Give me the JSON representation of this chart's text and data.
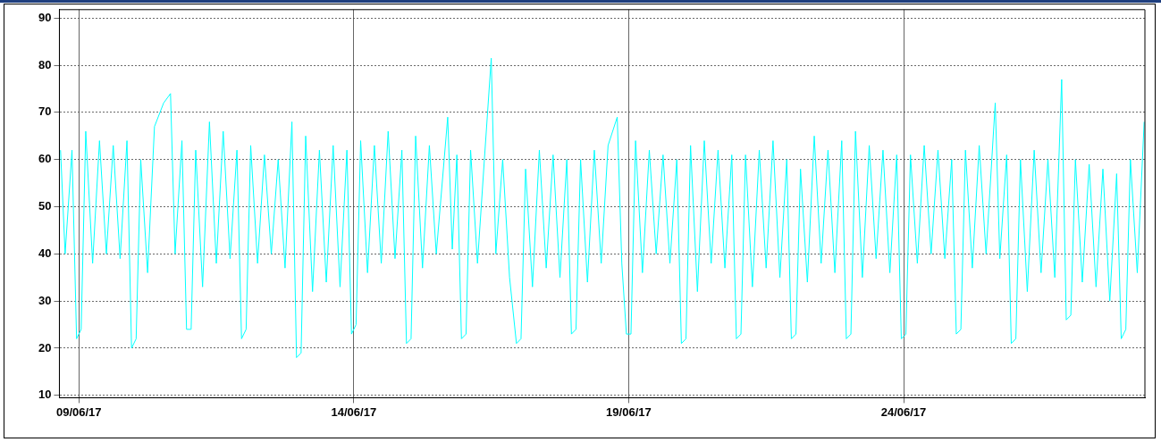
{
  "chart_data": {
    "type": "line",
    "xlim": [
      "--06-08T15:30",
      "--06-28T09:20"
    ],
    "ylim": [
      9.5,
      91.8
    ],
    "yticks": [
      10,
      20,
      30,
      40,
      50,
      60,
      70,
      80,
      90
    ],
    "xticks": [
      {
        "value": "--06-09",
        "label": "09/06/17"
      },
      {
        "value": "--06-14",
        "label": "14/06/17"
      },
      {
        "value": "--06-19",
        "label": "19/06/17"
      },
      {
        "value": "--06-24",
        "label": "24/06/17"
      }
    ],
    "grid": true,
    "legend": false,
    "marker": "none",
    "line_style": "solid",
    "series": [
      {
        "color": "#00ffff",
        "x": [
          "--06-08T16:00",
          "--06-08T18:00",
          "--06-08T21:00",
          "--06-08T23:00",
          "--06-09T01:00",
          "--06-09T03:00",
          "--06-09T06:00",
          "--06-09T09:00",
          "--06-09T12:00",
          "--06-09T15:00",
          "--06-09T18:00",
          "--06-09T21:00",
          "--06-09T23:00",
          "--06-10T01:00",
          "--06-10T03:00",
          "--06-10T06:00",
          "--06-10T09:00",
          "--06-10T13:00",
          "--06-10T16:00",
          "--06-10T18:00",
          "--06-10T21:00",
          "--06-10T23:00",
          "--06-11T01:00",
          "--06-11T03:00",
          "--06-11T06:00",
          "--06-11T09:00",
          "--06-11T12:00",
          "--06-11T15:00",
          "--06-11T18:00",
          "--06-11T21:00",
          "--06-11T23:00",
          "--06-12T01:00",
          "--06-12T03:00",
          "--06-12T06:00",
          "--06-12T09:00",
          "--06-12T12:00",
          "--06-12T15:00",
          "--06-12T18:00",
          "--06-12T21:00",
          "--06-12T23:00",
          "--06-13T01:00",
          "--06-13T03:00",
          "--06-13T06:00",
          "--06-13T09:00",
          "--06-13T12:00",
          "--06-13T15:00",
          "--06-13T18:00",
          "--06-13T21:00",
          "--06-13T23:00",
          "--06-14T01:00",
          "--06-14T03:00",
          "--06-14T06:00",
          "--06-14T09:00",
          "--06-14T12:00",
          "--06-14T15:00",
          "--06-14T18:00",
          "--06-14T21:00",
          "--06-14T23:00",
          "--06-15T01:00",
          "--06-15T03:00",
          "--06-15T06:00",
          "--06-15T09:00",
          "--06-15T12:00",
          "--06-15T17:00",
          "--06-15T19:00",
          "--06-15T21:00",
          "--06-15T23:00",
          "--06-16T01:00",
          "--06-16T03:00",
          "--06-16T06:00",
          "--06-16T09:00",
          "--06-16T12:00",
          "--06-16T14:00",
          "--06-16T17:00",
          "--06-16T20:00",
          "--06-16T23:00",
          "--06-17T01:00",
          "--06-17T03:00",
          "--06-17T06:00",
          "--06-17T09:00",
          "--06-17T12:00",
          "--06-17T15:00",
          "--06-17T18:00",
          "--06-17T21:00",
          "--06-17T23:00",
          "--06-18T01:00",
          "--06-18T03:00",
          "--06-18T06:00",
          "--06-18T09:00",
          "--06-18T12:00",
          "--06-18T15:00",
          "--06-18T19:00",
          "--06-18T21:00",
          "--06-18T23:00",
          "--06-19T01:00",
          "--06-19T03:00",
          "--06-19T06:00",
          "--06-19T09:00",
          "--06-19T12:00",
          "--06-19T15:00",
          "--06-19T18:00",
          "--06-19T21:00",
          "--06-19T23:00",
          "--06-20T01:00",
          "--06-20T03:00",
          "--06-20T06:00",
          "--06-20T09:00",
          "--06-20T12:00",
          "--06-20T15:00",
          "--06-20T18:00",
          "--06-20T21:00",
          "--06-20T23:00",
          "--06-21T01:00",
          "--06-21T03:00",
          "--06-21T06:00",
          "--06-21T09:00",
          "--06-21T12:00",
          "--06-21T15:00",
          "--06-21T18:00",
          "--06-21T21:00",
          "--06-21T23:00",
          "--06-22T01:00",
          "--06-22T03:00",
          "--06-22T06:00",
          "--06-22T09:00",
          "--06-22T12:00",
          "--06-22T15:00",
          "--06-22T18:00",
          "--06-22T21:00",
          "--06-22T23:00",
          "--06-23T01:00",
          "--06-23T03:00",
          "--06-23T06:00",
          "--06-23T09:00",
          "--06-23T12:00",
          "--06-23T15:00",
          "--06-23T18:00",
          "--06-23T21:00",
          "--06-23T23:00",
          "--06-24T01:00",
          "--06-24T03:00",
          "--06-24T06:00",
          "--06-24T09:00",
          "--06-24T12:00",
          "--06-24T15:00",
          "--06-24T18:00",
          "--06-24T21:00",
          "--06-24T23:00",
          "--06-25T01:00",
          "--06-25T03:00",
          "--06-25T06:00",
          "--06-25T09:00",
          "--06-25T12:00",
          "--06-25T16:00",
          "--06-25T18:00",
          "--06-25T21:00",
          "--06-25T23:00",
          "--06-26T01:00",
          "--06-26T03:00",
          "--06-26T06:00",
          "--06-26T09:00",
          "--06-26T12:00",
          "--06-26T15:00",
          "--06-26T18:00",
          "--06-26T21:00",
          "--06-26T23:00",
          "--06-27T01:00",
          "--06-27T03:00",
          "--06-27T06:00",
          "--06-27T09:00",
          "--06-27T12:00",
          "--06-27T15:00",
          "--06-27T18:00",
          "--06-27T21:00",
          "--06-27T23:00",
          "--06-28T01:00",
          "--06-28T03:00",
          "--06-28T06:00",
          "--06-28T09:00"
        ],
        "values": [
          62,
          40,
          62,
          22,
          24,
          66,
          38,
          64,
          40,
          63,
          39,
          64,
          20,
          22,
          60,
          36,
          67,
          72,
          74,
          40,
          64,
          24,
          24,
          62,
          33,
          68,
          38,
          66,
          39,
          62,
          22,
          24,
          63,
          38,
          61,
          40,
          60,
          37,
          68,
          18,
          19,
          65,
          32,
          62,
          34,
          63,
          33,
          62,
          23,
          25,
          64,
          36,
          63,
          38,
          66,
          39,
          62,
          21,
          22,
          65,
          37,
          63,
          40,
          69,
          41,
          61,
          22,
          23,
          62,
          38,
          60,
          81.5,
          40,
          60,
          35,
          21,
          22,
          58,
          33,
          62,
          37,
          61,
          35,
          60,
          23,
          24,
          60,
          34,
          62,
          38,
          63,
          69,
          38,
          23,
          23,
          64,
          36,
          62,
          40,
          61,
          38,
          60,
          21,
          22,
          63,
          32,
          64,
          38,
          62,
          37,
          61,
          22,
          23,
          61,
          33,
          62,
          37,
          64,
          35,
          60,
          22,
          23,
          58,
          34,
          65,
          38,
          62,
          36,
          64,
          22,
          23,
          66,
          35,
          63,
          39,
          62,
          36,
          61,
          22,
          23,
          61,
          38,
          63,
          40,
          62,
          39,
          60,
          23,
          24,
          62,
          37,
          63,
          40,
          72,
          39,
          61,
          21,
          22,
          60,
          32,
          62,
          36,
          60,
          35,
          77,
          26,
          27,
          60,
          34,
          59,
          33,
          58,
          30,
          57,
          22,
          24,
          60,
          36,
          68
        ]
      }
    ]
  }
}
